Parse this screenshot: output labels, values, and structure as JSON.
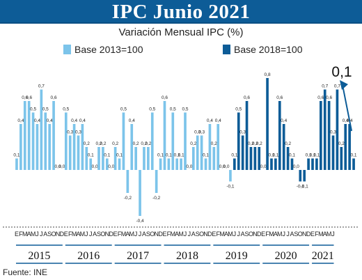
{
  "title": "IPC Junio 2021",
  "subtitle": "Variación Mensual IPC (%)",
  "legend": [
    {
      "label": "Base 2013=100",
      "color": "#7cc4ea"
    },
    {
      "label": "Base 2018=100",
      "color": "#0d5c97"
    }
  ],
  "annotation": "0,1",
  "source": "Fuente: INE",
  "colors": {
    "banner": "#0d5c97",
    "base2013": "#7cc4ea",
    "base2018": "#0d5c97",
    "arrow": "#0d5c97"
  },
  "chart_data": {
    "type": "bar",
    "ylabel": "",
    "ylim": [
      -0.4,
      0.8
    ],
    "grid": false,
    "legend_position": "top",
    "years": [
      "2015",
      "2016",
      "2017",
      "2018",
      "2019",
      "2020",
      "2021"
    ],
    "month_letters": [
      "E",
      "F",
      "M",
      "A",
      "M",
      "J",
      "J",
      "A",
      "S",
      "O",
      "N",
      "D"
    ],
    "series": [
      {
        "name": "Base 2013=100",
        "start_index": 0,
        "values": [
          0.1,
          0.4,
          0.6,
          0.6,
          0.5,
          0.4,
          0.7,
          0.5,
          0.4,
          0.6,
          0,
          0,
          0.5,
          0.3,
          0.4,
          0.3,
          0.4,
          0.2,
          0.1,
          0,
          0.2,
          0.2,
          0.1,
          0,
          0.2,
          0.1,
          0.5,
          -0.2,
          0.4,
          0.2,
          -0.4,
          0.2,
          0.2,
          0.5,
          -0.2,
          0.1,
          0.6,
          0.1,
          0.5,
          0.1,
          0.1,
          0.5,
          0,
          0.2,
          0.3,
          0.3,
          0.1,
          0.4,
          0.2,
          0.4,
          0,
          0,
          -0.1
        ]
      },
      {
        "name": "Base 2018=100",
        "start_index": 53,
        "values": [
          0.1,
          0.5,
          0.3,
          0.6,
          0.2,
          0.2,
          0.2,
          0,
          0.8,
          0.1,
          0.1,
          0.6,
          0.4,
          0.2,
          0.1,
          0,
          -0.1,
          -0.1,
          0.1,
          0.1,
          0.1,
          0.6,
          0.7,
          0.6,
          0.3,
          0.7,
          0.2,
          0.4,
          0.4,
          0.1
        ]
      }
    ],
    "value_labels": [
      "0,1",
      "0,4",
      "0,6",
      "0,6",
      "0,5",
      "0,4",
      "0,7",
      "0,5",
      "0,4",
      "0,6",
      "0,0",
      "0,0",
      "0,5",
      "0,3",
      "0,4",
      "0,3",
      "0,4",
      "0,2",
      "0,1",
      "0,0",
      "0,2",
      "0,2",
      "0,1",
      "0,0",
      "0,2",
      "0,1",
      "0,5",
      "-0,2",
      "0,4",
      "0,2",
      "-0,4",
      "0,2",
      "0,2",
      "0,5",
      "-0,2",
      "0,1",
      "0,6",
      "0,1",
      "0,5",
      "0,1",
      "0,1",
      "0,5",
      "0,0",
      "0,2",
      "0,3",
      "0,3",
      "0,1",
      "0,4",
      "0,2",
      "0,4",
      "0,0",
      "0,0",
      "-0,1",
      "0,1",
      "0,5",
      "0,3",
      "0,6",
      "0,2",
      "0,2",
      "0,2",
      "0,0",
      "0,8",
      "0,1",
      "0,1",
      "0,6",
      "0,4",
      "0,2",
      "0,1",
      "0,0",
      "-0,1",
      "-0,1",
      "0,1",
      "0,1",
      "0,1",
      "0,6",
      "0,7",
      "0,6",
      "0,3",
      "0,7",
      "0,2",
      "0,4",
      "0,4",
      "0,1"
    ],
    "year_month_letters": [
      "EFMAMJJASOND",
      "EFMAMJJASOND",
      "EFMAMJJASOND",
      "EFMAMJJASOND",
      "EFMAMJJASOND",
      "EFMAMJJASOND",
      "EFMAMJ"
    ]
  }
}
